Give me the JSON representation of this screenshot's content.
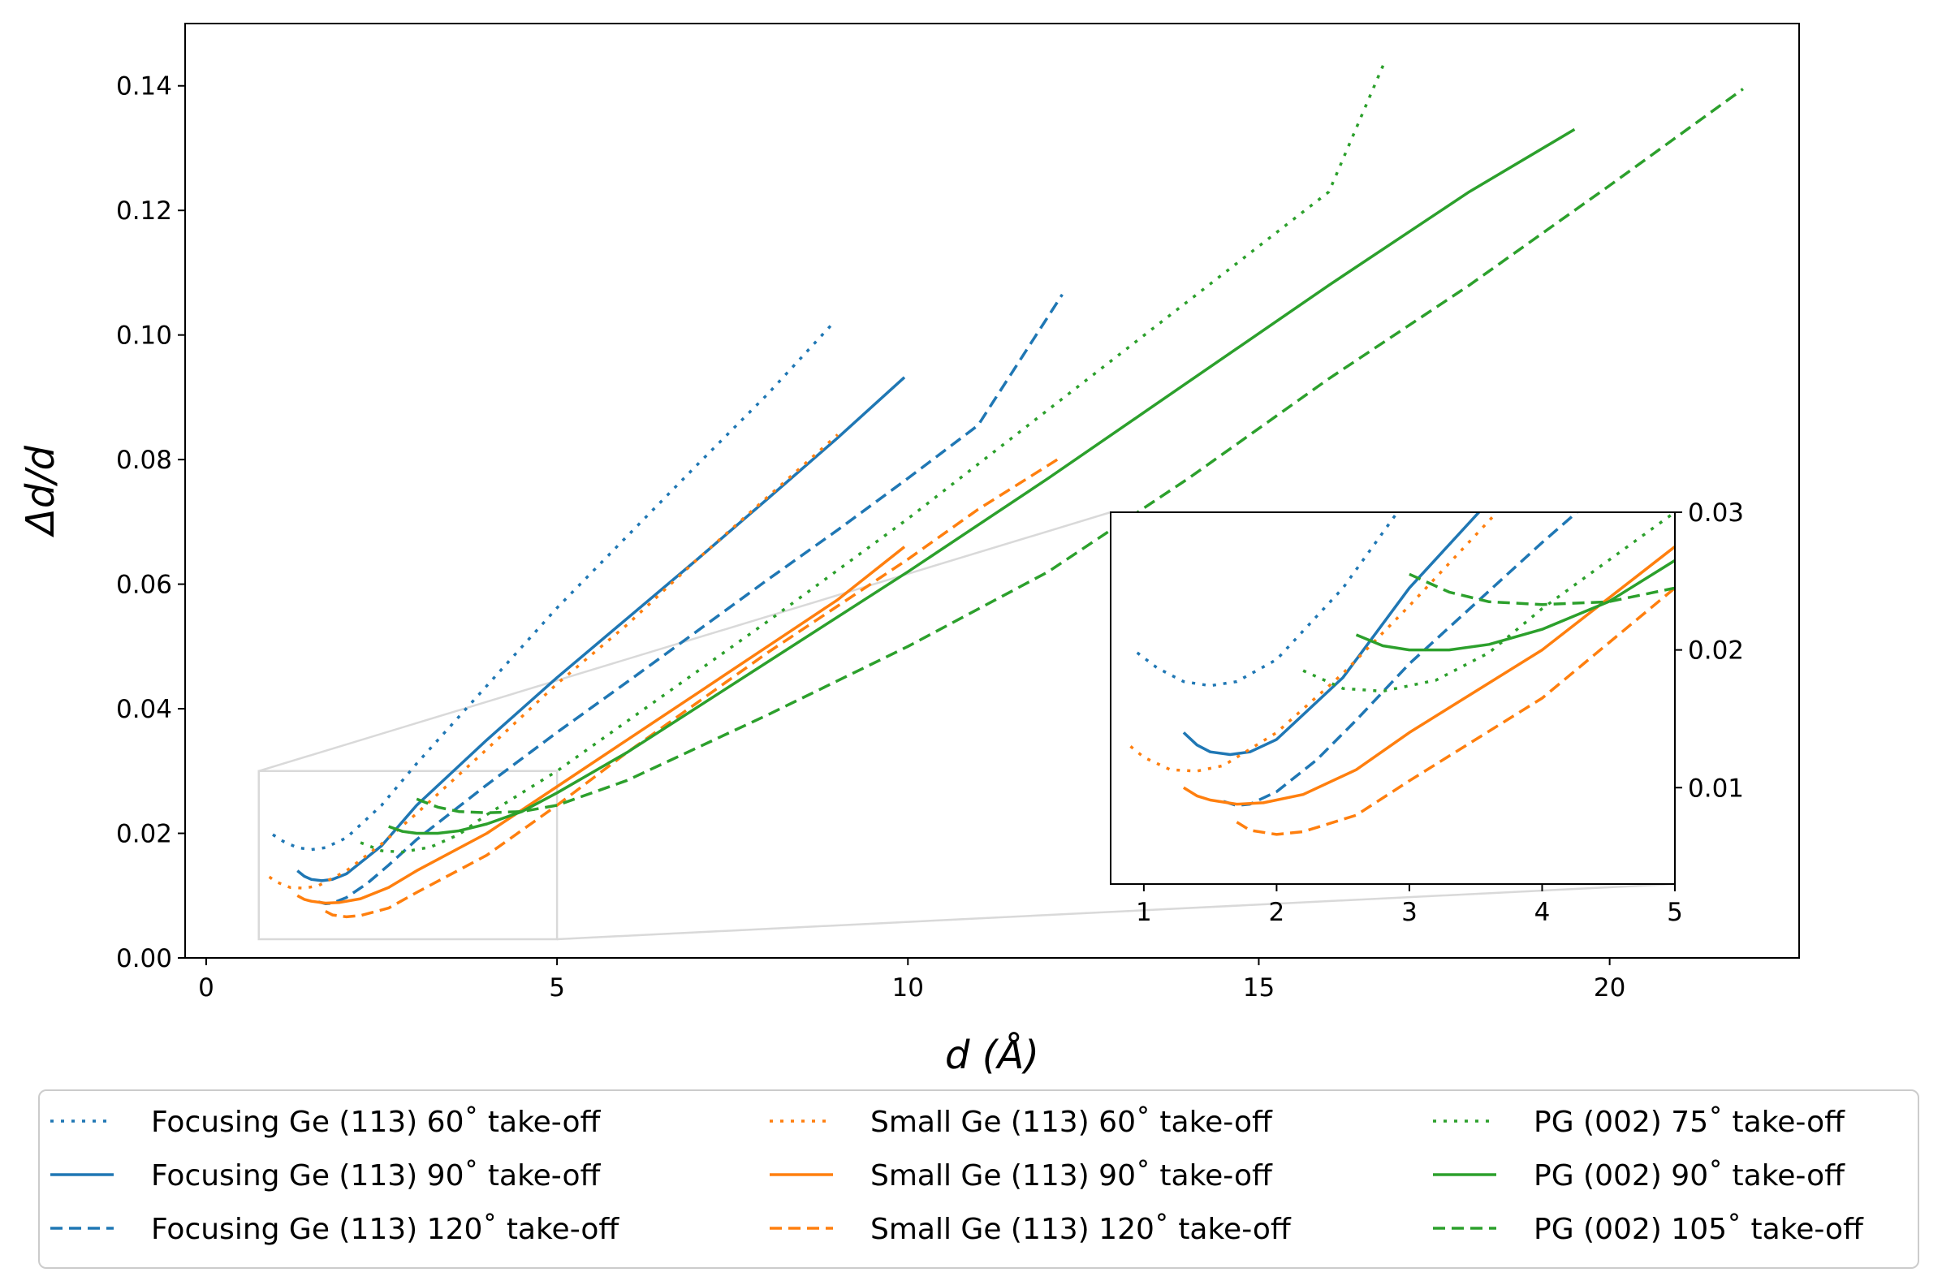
{
  "chart_data": {
    "type": "line",
    "xlabel": "d (Å)",
    "ylabel": "Δd/d",
    "xlim": [
      -0.3,
      22.7
    ],
    "ylim": [
      0.0,
      0.15
    ],
    "xticks": [
      0,
      5,
      10,
      15,
      20
    ],
    "yticks": [
      0.0,
      0.02,
      0.04,
      0.06,
      0.08,
      0.1,
      0.12,
      0.14
    ],
    "ytick_labels": [
      "0.00",
      "0.02",
      "0.04",
      "0.06",
      "0.08",
      "0.10",
      "0.12",
      "0.14"
    ],
    "colors": {
      "blue": "#1f77b4",
      "orange": "#ff7f0e",
      "green": "#2ca02c",
      "zoom": "#d9d9d9"
    },
    "legend_position": "bottom",
    "series": [
      {
        "name": "Focusing Ge (113) 60˚ take-off",
        "color": "blue",
        "dash": "dotted",
        "x": [
          0.95,
          1.1,
          1.3,
          1.5,
          1.7,
          2.0,
          2.5,
          3.0,
          4.0,
          5.0,
          6.0,
          7.0,
          8.0,
          8.9
        ],
        "y": [
          0.0198,
          0.0187,
          0.0177,
          0.0174,
          0.0177,
          0.0193,
          0.0245,
          0.0312,
          0.0437,
          0.0562,
          0.0677,
          0.0792,
          0.0905,
          0.1015
        ]
      },
      {
        "name": "Focusing Ge (113) 90˚ take-off",
        "color": "blue",
        "dash": "solid",
        "x": [
          1.3,
          1.4,
          1.5,
          1.65,
          1.8,
          2.0,
          2.5,
          3.0,
          4.0,
          5.0,
          6.0,
          7.0,
          8.0,
          9.0,
          9.95
        ],
        "y": [
          0.014,
          0.0131,
          0.0126,
          0.0124,
          0.0126,
          0.0135,
          0.018,
          0.0245,
          0.035,
          0.045,
          0.0545,
          0.064,
          0.0737,
          0.0835,
          0.0932
        ]
      },
      {
        "name": "Focusing Ge (113) 120˚ take-off",
        "color": "blue",
        "dash": "dashed",
        "x": [
          1.6,
          1.7,
          1.8,
          2.0,
          2.3,
          2.6,
          3.0,
          4.0,
          5.0,
          6.0,
          7.0,
          8.0,
          9.0,
          10.0,
          11.0,
          12.2
        ],
        "y": [
          0.009,
          0.0087,
          0.0088,
          0.0097,
          0.012,
          0.0149,
          0.019,
          0.0278,
          0.0362,
          0.0443,
          0.0525,
          0.0607,
          0.0687,
          0.077,
          0.0855,
          0.1065
        ]
      },
      {
        "name": "Small Ge (113) 60˚ take-off",
        "color": "orange",
        "dash": "dotted",
        "x": [
          0.9,
          1.0,
          1.2,
          1.4,
          1.6,
          2.0,
          2.5,
          3.0,
          4.0,
          5.0,
          6.0,
          7.0,
          8.0,
          9.0
        ],
        "y": [
          0.013,
          0.0122,
          0.0113,
          0.0112,
          0.0116,
          0.014,
          0.0183,
          0.0232,
          0.0335,
          0.044,
          0.0535,
          0.064,
          0.074,
          0.084
        ]
      },
      {
        "name": "Small Ge (113) 90˚ take-off",
        "color": "orange",
        "dash": "solid",
        "x": [
          1.3,
          1.4,
          1.5,
          1.7,
          1.9,
          2.2,
          2.6,
          3.0,
          4.0,
          5.0,
          6.0,
          7.0,
          8.0,
          9.0,
          9.95
        ],
        "y": [
          0.01,
          0.0094,
          0.0091,
          0.0088,
          0.0089,
          0.0095,
          0.0113,
          0.014,
          0.02,
          0.0275,
          0.035,
          0.0425,
          0.05,
          0.0575,
          0.066
        ]
      },
      {
        "name": "Small Ge (113) 120˚ take-off",
        "color": "orange",
        "dash": "dashed",
        "x": [
          1.7,
          1.8,
          2.0,
          2.2,
          2.6,
          3.0,
          4.0,
          5.0,
          6.0,
          7.0,
          8.0,
          9.0,
          10.0,
          11.0,
          12.2
        ],
        "y": [
          0.0075,
          0.0069,
          0.0066,
          0.0068,
          0.008,
          0.0105,
          0.0165,
          0.0245,
          0.033,
          0.041,
          0.049,
          0.0565,
          0.064,
          0.072,
          0.0805
        ]
      },
      {
        "name": "PG (002) 75˚ take-off",
        "color": "green",
        "dash": "dotted",
        "x": [
          2.2,
          2.5,
          2.8,
          3.2,
          3.6,
          4.0,
          5.0,
          6.0,
          8.0,
          10.0,
          12.0,
          14.0,
          16.0,
          16.8
        ],
        "y": [
          0.0185,
          0.0172,
          0.017,
          0.0178,
          0.0198,
          0.023,
          0.03,
          0.038,
          0.054,
          0.0705,
          0.088,
          0.1055,
          0.123,
          0.144
        ]
      },
      {
        "name": "PG (002) 90˚ take-off",
        "color": "green",
        "dash": "solid",
        "x": [
          2.6,
          2.8,
          3.0,
          3.3,
          3.6,
          4.0,
          4.5,
          5.0,
          6.0,
          8.0,
          10.0,
          12.0,
          14.0,
          16.0,
          18.0,
          19.5
        ],
        "y": [
          0.0211,
          0.0203,
          0.02,
          0.02,
          0.0204,
          0.0215,
          0.0235,
          0.0265,
          0.033,
          0.0475,
          0.062,
          0.077,
          0.0925,
          0.108,
          0.123,
          0.133
        ]
      },
      {
        "name": "PG (002) 105˚ take-off",
        "color": "green",
        "dash": "dashed",
        "x": [
          3.0,
          3.3,
          3.6,
          4.0,
          4.5,
          5.0,
          6.0,
          8.0,
          10.0,
          12.0,
          14.0,
          16.0,
          18.0,
          20.0,
          21.9
        ],
        "y": [
          0.0255,
          0.0242,
          0.0235,
          0.0233,
          0.0235,
          0.0245,
          0.0285,
          0.039,
          0.05,
          0.062,
          0.077,
          0.093,
          0.108,
          0.124,
          0.1395
        ]
      }
    ],
    "inset": {
      "xlim": [
        0.75,
        5.0
      ],
      "ylim": [
        0.003,
        0.03
      ],
      "xticks": [
        1,
        2,
        3,
        4,
        5
      ],
      "yticks": [
        0.01,
        0.02,
        0.03
      ],
      "ytick_labels": [
        "0.01",
        "0.02",
        "0.03"
      ],
      "ytick_side": "right"
    }
  }
}
